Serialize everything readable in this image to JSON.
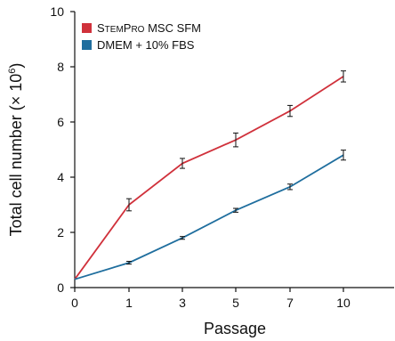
{
  "chart_data": {
    "type": "line",
    "xlabel": "Passage",
    "ylabel": "Total cell number (× 10",
    "ylabel_exp": "6",
    "ylabel_close": ")",
    "ylim": [
      0,
      10
    ],
    "yticks": [
      0,
      2,
      4,
      6,
      8,
      10
    ],
    "x_tick_labels": [
      "0",
      "1",
      "3",
      "5",
      "7",
      "10"
    ],
    "grid": false,
    "legend_position": "top-left",
    "series": [
      {
        "name": "STEMPRO MSC SFM",
        "name_parts": {
          "s": "S",
          "s_small": "TEM",
          "p": "P",
          "p_small": "RO",
          "rest": " MSC SFM"
        },
        "color": "#d0313b",
        "values": [
          0.3,
          3.0,
          4.5,
          5.35,
          6.4,
          7.65
        ],
        "errors": [
          0,
          0.22,
          0.18,
          0.25,
          0.2,
          0.2
        ]
      },
      {
        "name": "DMEM + 10%  FBS",
        "color": "#1f6e9e",
        "values": [
          0.3,
          0.9,
          1.8,
          2.8,
          3.65,
          4.8
        ],
        "errors": [
          0,
          0.05,
          0.05,
          0.07,
          0.1,
          0.18
        ]
      }
    ]
  }
}
